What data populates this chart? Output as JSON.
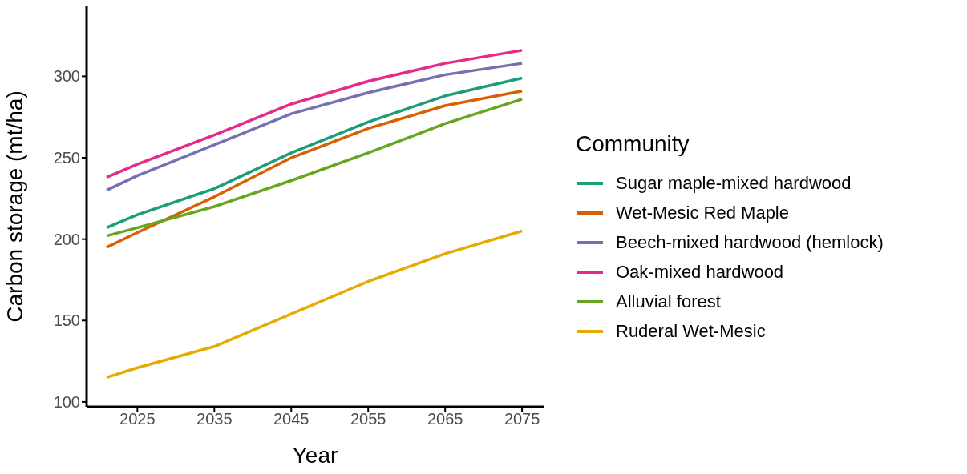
{
  "chart_data": {
    "type": "line",
    "xlabel": "Year",
    "ylabel": "Carbon storage (mt/ha)",
    "legend_title": "Community",
    "legend": "right",
    "grid": false,
    "marker": "none",
    "line_style": "solid",
    "x": [
      2021,
      2025,
      2035,
      2045,
      2055,
      2065,
      2075
    ],
    "xlim": [
      2018.4,
      2077.8
    ],
    "xticks": [
      2025,
      2035,
      2045,
      2055,
      2065,
      2075
    ],
    "ylim": [
      97,
      343
    ],
    "yticks": [
      100,
      150,
      200,
      250,
      300
    ],
    "series": [
      {
        "name": "Sugar maple-mixed hardwood",
        "color": "#1b9e77",
        "values": [
          207,
          215,
          231,
          253,
          272,
          288,
          299
        ]
      },
      {
        "name": "Wet-Mesic Red Maple",
        "color": "#d95f02",
        "values": [
          195,
          204,
          226,
          250,
          268,
          282,
          291
        ]
      },
      {
        "name": "Beech-mixed hardwood (hemlock)",
        "color": "#7570b3",
        "values": [
          230,
          239,
          258,
          277,
          290,
          301,
          308
        ]
      },
      {
        "name": "Oak-mixed hardwood",
        "color": "#e7298a",
        "values": [
          238,
          246,
          264,
          283,
          297,
          308,
          316
        ]
      },
      {
        "name": "Alluvial forest",
        "color": "#66a61e",
        "values": [
          202,
          207,
          220,
          236,
          253,
          271,
          286
        ]
      },
      {
        "name": "Ruderal Wet-Mesic",
        "color": "#e6ab02",
        "values": [
          115,
          121,
          134,
          154,
          174,
          191,
          205
        ]
      }
    ]
  }
}
